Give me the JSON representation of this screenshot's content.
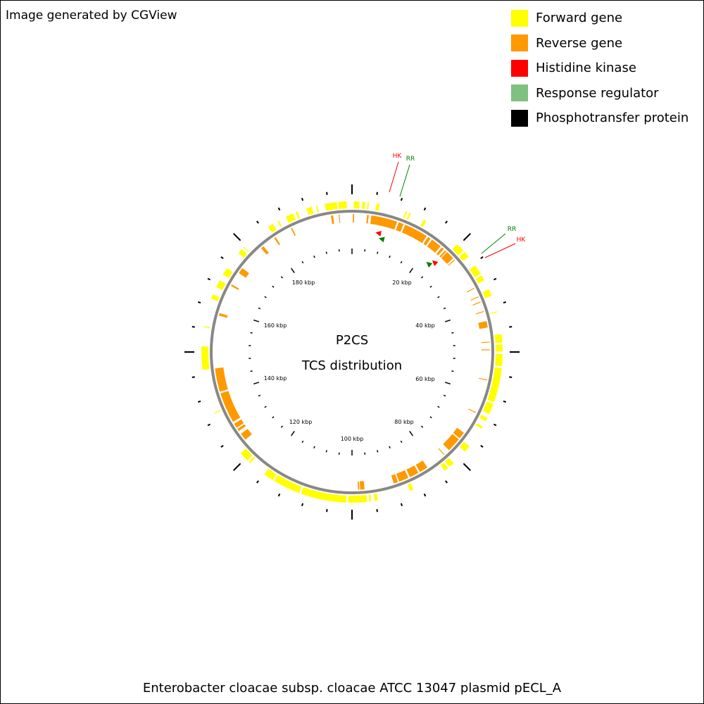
{
  "credit": "Image generated by CGView",
  "caption": "Enterobacter cloacae subsp. cloacae ATCC 13047 plasmid pECL_A",
  "center": {
    "line1": "P2CS",
    "line2": "TCS distribution"
  },
  "legend": [
    {
      "label": "Forward gene",
      "color": "#ffff00"
    },
    {
      "label": "Reverse gene",
      "color": "#ff9900"
    },
    {
      "label": "Histidine kinase",
      "color": "#ff0000"
    },
    {
      "label": "Response regulator",
      "color": "#80c080"
    },
    {
      "label": "Phosphotransfer protein",
      "color": "#000000"
    }
  ],
  "kbp_labels": [
    "20 kbp",
    "40 kbp",
    "60 kbp",
    "80 kbp",
    "100 kbp",
    "120 kbp",
    "140 kbp",
    "160 kbp",
    "180 kbp"
  ],
  "genome_kbp": 200,
  "forward_genes_kbp": [
    [
      0.4,
      1.6
    ],
    [
      2.2,
      2.8
    ],
    [
      3.3,
      3.6
    ],
    [
      5.2,
      5.9
    ],
    [
      11.6,
      11.9
    ],
    [
      12.4,
      12.8
    ],
    [
      15.8,
      16.4
    ],
    [
      24.6,
      26.5
    ],
    [
      26.9,
      28.2
    ],
    [
      30.5,
      32.6
    ],
    [
      33,
      34.2
    ],
    [
      36.3,
      37.8
    ],
    [
      41.3,
      41.5
    ],
    [
      46.2,
      48
    ],
    [
      48.4,
      49.9
    ],
    [
      50.4,
      53
    ],
    [
      53.4,
      60.8
    ],
    [
      61.2,
      63.5
    ],
    [
      64.4,
      65.2
    ],
    [
      66.5,
      67
    ],
    [
      71.5,
      73
    ],
    [
      76.4,
      77.6
    ],
    [
      78,
      78.9
    ],
    [
      86.6,
      87.4
    ],
    [
      94.5,
      95.2
    ],
    [
      95.9,
      96.3
    ],
    [
      96.8,
      100.8
    ],
    [
      101.2,
      111
    ],
    [
      111.4,
      117.3
    ],
    [
      117.6,
      119.8
    ],
    [
      123.6,
      124
    ],
    [
      124.4,
      126.5
    ],
    [
      136.6,
      136.8
    ],
    [
      146.2,
      151.2
    ],
    [
      155.3,
      155.5
    ],
    [
      161.5,
      162.5
    ],
    [
      164.2,
      165.8
    ],
    [
      167.2,
      168.8
    ],
    [
      172.8,
      173.9
    ],
    [
      174.4,
      174.6
    ],
    [
      181.2,
      182.4
    ],
    [
      183.5,
      183.8
    ],
    [
      185.5,
      187.2
    ],
    [
      187.8,
      188.2
    ],
    [
      190.2,
      191.4
    ],
    [
      192.3,
      192.6
    ],
    [
      194.2,
      196.8
    ],
    [
      197.1,
      198.9
    ]
  ],
  "reverse_genes_kbp": [
    [
      0.2,
      0.5
    ],
    [
      3.5,
      3.9
    ],
    [
      4.5,
      10.6
    ],
    [
      11,
      12.2
    ],
    [
      12.6,
      18.2
    ],
    [
      18.6,
      19.3
    ],
    [
      19.7,
      22.2
    ],
    [
      22.6,
      23.2
    ],
    [
      23.6,
      24
    ],
    [
      24.2,
      26.2
    ],
    [
      26.6,
      26.8
    ],
    [
      34.6,
      34.8
    ],
    [
      36.8,
      37
    ],
    [
      38.1,
      38.3
    ],
    [
      40.4,
      40.6
    ],
    [
      42.8,
      44.3
    ],
    [
      47.6,
      47.8
    ],
    [
      49.4,
      49.6
    ],
    [
      56.4,
      56.6
    ],
    [
      64.4,
      64.6
    ],
    [
      69.9,
      71.5
    ],
    [
      71.8,
      75.2
    ],
    [
      76.6,
      76.8
    ],
    [
      81.6,
      83.6
    ],
    [
      84,
      86.2
    ],
    [
      86.6,
      88.9
    ],
    [
      89.2,
      90.2
    ],
    [
      97.1,
      98.1
    ],
    [
      98.3,
      98.6
    ],
    [
      128.1,
      129.8
    ],
    [
      130.6,
      131.2
    ],
    [
      131.5,
      132.6
    ],
    [
      133.1,
      140.3
    ],
    [
      140.7,
      146.2
    ],
    [
      158.5,
      159.1
    ],
    [
      165.9,
      166.3
    ],
    [
      169.4,
      170.8
    ],
    [
      177.1,
      177.8
    ],
    [
      180.9,
      181.3
    ],
    [
      185.4,
      185.7
    ],
    [
      195.1,
      195.6
    ],
    [
      196.9,
      197.1
    ]
  ],
  "tcs_markers": [
    {
      "kbp": 6.9,
      "type": "Histidine kinase",
      "tag": "HK"
    },
    {
      "kbp": 8.1,
      "type": "Response regulator",
      "tag": "RR"
    },
    {
      "kbp": 23.6,
      "type": "Histidine kinase",
      "tag": "HK"
    },
    {
      "kbp": 22.7,
      "type": "Response regulator",
      "tag": "RR"
    }
  ]
}
